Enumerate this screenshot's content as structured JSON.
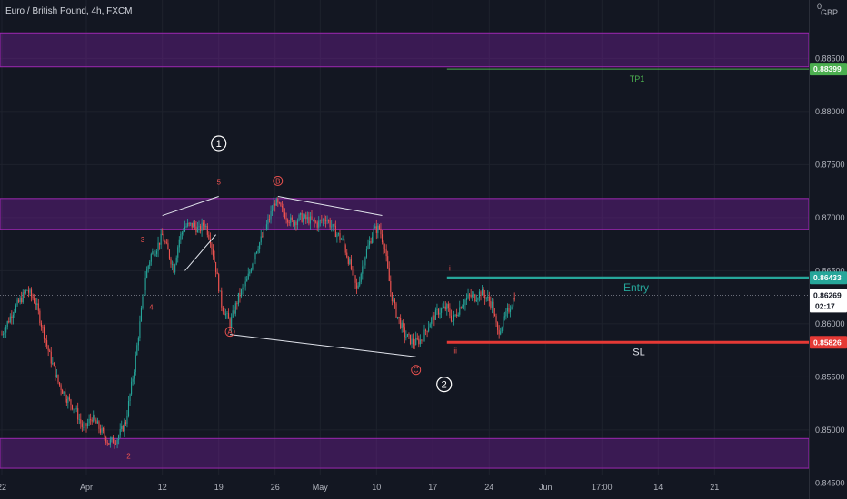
{
  "chart_data": {
    "type": "candlestick",
    "title": "Euro / British Pound, 4h, FXCM",
    "currency": "GBP",
    "y_axis_top_label": "0",
    "ylim": [
      0.8435,
      0.8905
    ],
    "yticks": [
      "0.88500",
      "0.88000",
      "0.87500",
      "0.87000",
      "0.86500",
      "0.86000",
      "0.85500",
      "0.85000",
      "0.84500"
    ],
    "ytick_values": [
      0.885,
      0.88,
      0.875,
      0.87,
      0.865,
      0.86,
      0.855,
      0.85,
      0.845
    ],
    "xticks": [
      "22",
      "Apr",
      "12",
      "19",
      "26",
      "May",
      "10",
      "17",
      "24",
      "Jun",
      "17:00",
      "14",
      "21"
    ],
    "xtick_bars": [
      0,
      60,
      114,
      154,
      194,
      226,
      266,
      306,
      346,
      386,
      426,
      466,
      506
    ],
    "price_path": [
      [
        0,
        0.859
      ],
      [
        8,
        0.8612
      ],
      [
        18,
        0.8632
      ],
      [
        24,
        0.862
      ],
      [
        28,
        0.86
      ],
      [
        34,
        0.857
      ],
      [
        40,
        0.8545
      ],
      [
        46,
        0.853
      ],
      [
        52,
        0.852
      ],
      [
        58,
        0.85
      ],
      [
        64,
        0.8512
      ],
      [
        70,
        0.85
      ],
      [
        76,
        0.8488
      ],
      [
        82,
        0.8492
      ],
      [
        88,
        0.8508
      ],
      [
        94,
        0.8558
      ],
      [
        98,
        0.86
      ],
      [
        102,
        0.8645
      ],
      [
        106,
        0.8665
      ],
      [
        110,
        0.8672
      ],
      [
        114,
        0.8683
      ],
      [
        118,
        0.8668
      ],
      [
        122,
        0.8652
      ],
      [
        126,
        0.868
      ],
      [
        130,
        0.8692
      ],
      [
        136,
        0.8693
      ],
      [
        140,
        0.8688
      ],
      [
        144,
        0.8695
      ],
      [
        148,
        0.868
      ],
      [
        152,
        0.8652
      ],
      [
        156,
        0.8618
      ],
      [
        162,
        0.86
      ],
      [
        168,
        0.8625
      ],
      [
        174,
        0.864
      ],
      [
        180,
        0.8668
      ],
      [
        186,
        0.8685
      ],
      [
        190,
        0.87
      ],
      [
        194,
        0.8715
      ],
      [
        200,
        0.8705
      ],
      [
        206,
        0.8695
      ],
      [
        212,
        0.87
      ],
      [
        218,
        0.8698
      ],
      [
        224,
        0.8694
      ],
      [
        230,
        0.87
      ],
      [
        236,
        0.8688
      ],
      [
        242,
        0.8678
      ],
      [
        248,
        0.8652
      ],
      [
        252,
        0.8632
      ],
      [
        258,
        0.8665
      ],
      [
        264,
        0.8688
      ],
      [
        268,
        0.869
      ],
      [
        272,
        0.867
      ],
      [
        276,
        0.863
      ],
      [
        280,
        0.861
      ],
      [
        286,
        0.859
      ],
      [
        292,
        0.8582
      ],
      [
        298,
        0.8585
      ],
      [
        304,
        0.8602
      ],
      [
        310,
        0.8612
      ],
      [
        316,
        0.8615
      ],
      [
        320,
        0.8603
      ],
      [
        326,
        0.8618
      ],
      [
        332,
        0.8626
      ],
      [
        336,
        0.8625
      ],
      [
        340,
        0.863
      ],
      [
        344,
        0.8625
      ],
      [
        348,
        0.8618
      ],
      [
        352,
        0.8592
      ],
      [
        356,
        0.8602
      ],
      [
        362,
        0.862
      ],
      [
        364,
        0.8627
      ]
    ],
    "zones": [
      {
        "from": 0.8842,
        "to": 0.8874
      },
      {
        "from": 0.8689,
        "to": 0.8718
      },
      {
        "from": 0.8464,
        "to": 0.8492
      }
    ],
    "levels": [
      {
        "name": "TP1",
        "value": 0.88399,
        "label": "0.88399",
        "color": "#4caf50",
        "from_bar": 316
      },
      {
        "name": "Entry",
        "value": 0.86433,
        "label": "0.86433",
        "color": "#26a69a",
        "from_bar": 316
      },
      {
        "name": "SL",
        "value": 0.85826,
        "label": "0.85826",
        "color": "#e53935",
        "from_bar": 316
      }
    ],
    "current_price": {
      "value": 0.86269,
      "label": "0.86269",
      "countdown": "02:17"
    },
    "wave_labels": [
      {
        "text": "1",
        "bar": 154,
        "price": 0.877,
        "circled": true
      },
      {
        "text": "5",
        "bar": 154,
        "price": 0.8731
      },
      {
        "text": "3",
        "bar": 100,
        "price": 0.8677
      },
      {
        "text": "4",
        "bar": 106,
        "price": 0.8613
      },
      {
        "text": "2",
        "bar": 90,
        "price": 0.8473
      },
      {
        "text": "B",
        "bar": 196,
        "price": 0.8732
      },
      {
        "text": "A",
        "bar": 162,
        "price": 0.859
      },
      {
        "text": "C",
        "bar": 294,
        "price": 0.8554
      },
      {
        "text": "i",
        "bar": 318,
        "price": 0.865
      },
      {
        "text": "ii",
        "bar": 322,
        "price": 0.8572
      },
      {
        "text": "2",
        "bar": 314,
        "price": 0.8543,
        "circled": true
      }
    ],
    "lines": [
      {
        "points": [
          [
            114,
            0.8702
          ],
          [
            154,
            0.872
          ]
        ]
      },
      {
        "points": [
          [
            130,
            0.865
          ],
          [
            152,
            0.8684
          ]
        ]
      },
      {
        "points": [
          [
            196,
            0.872
          ],
          [
            270,
            0.8702
          ]
        ]
      },
      {
        "points": [
          [
            162,
            0.859
          ],
          [
            294,
            0.8569
          ]
        ]
      }
    ]
  }
}
